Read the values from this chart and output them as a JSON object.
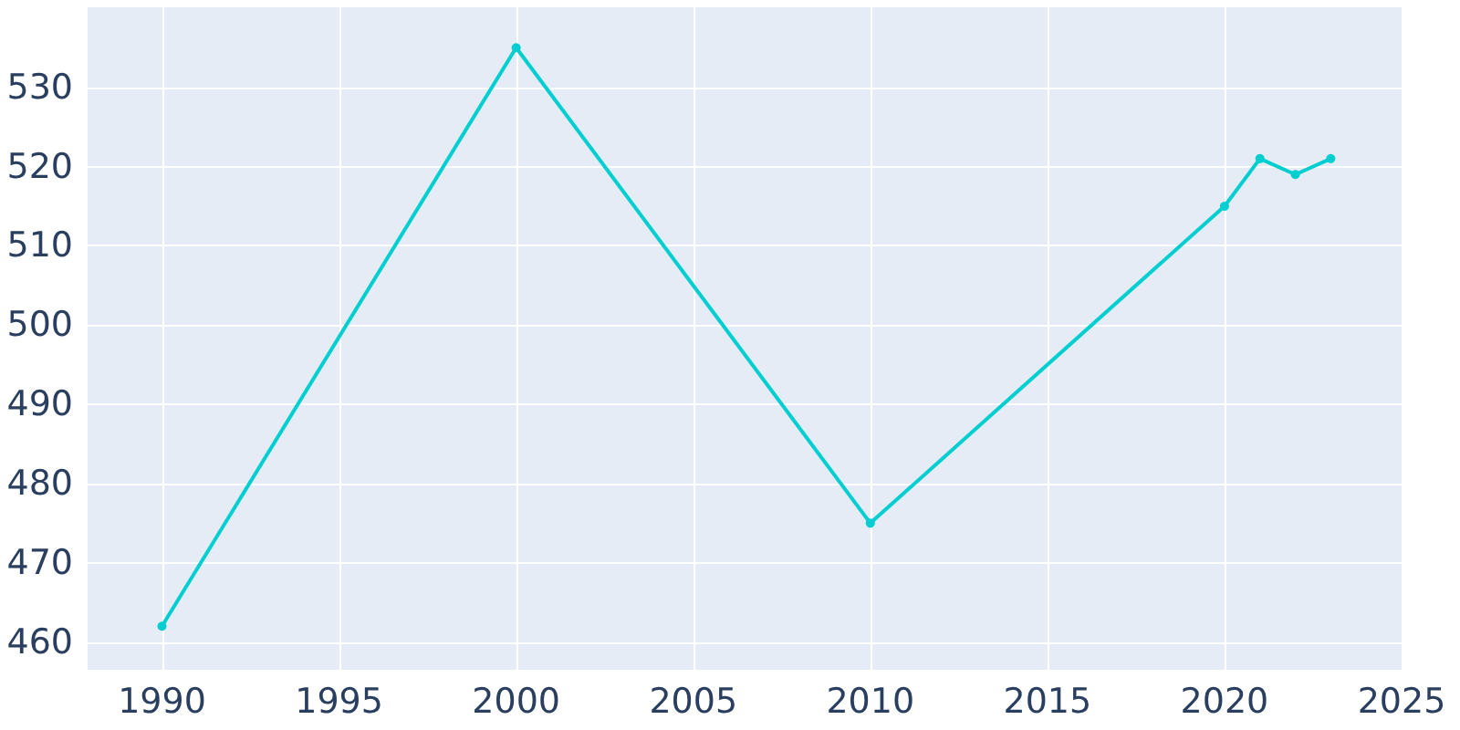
{
  "chart_data": {
    "type": "line",
    "x": [
      1990,
      2000,
      2010,
      2020,
      2021,
      2022,
      2023
    ],
    "series": [
      {
        "color": "#00ced1",
        "values": [
          462,
          535,
          475,
          515,
          521,
          519,
          521
        ]
      }
    ],
    "xlim": [
      1987.9,
      2025
    ],
    "ylim": [
      456.5,
      540.1
    ],
    "xticks": [
      1990,
      1995,
      2000,
      2005,
      2010,
      2015,
      2020,
      2025
    ],
    "yticks": [
      460,
      470,
      480,
      490,
      500,
      510,
      520,
      530
    ],
    "grid": true,
    "marker": "circle",
    "line_style": "solid"
  }
}
